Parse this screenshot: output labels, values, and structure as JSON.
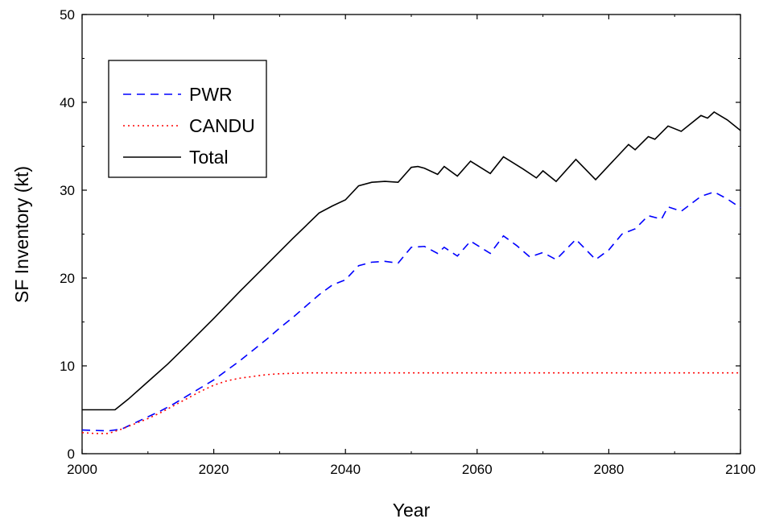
{
  "chart_data": {
    "type": "line",
    "title": "",
    "xlabel": "Year",
    "ylabel": "SF Inventory (kt)",
    "xlim": [
      2000,
      2100
    ],
    "ylim": [
      0,
      50
    ],
    "x_ticks": [
      2000,
      2020,
      2040,
      2060,
      2080,
      2100
    ],
    "y_ticks": [
      0,
      10,
      20,
      30,
      40,
      50
    ],
    "grid": false,
    "legend_position": "upper-left",
    "series": [
      {
        "name": "PWR",
        "color": "#0000ff",
        "style": "dashed",
        "x": [
          2000,
          2004,
          2006,
          2008,
          2010,
          2012,
          2014,
          2016,
          2018,
          2020,
          2022,
          2024,
          2026,
          2028,
          2030,
          2032,
          2034,
          2036,
          2038,
          2040,
          2042,
          2044,
          2046,
          2048,
          2050,
          2052,
          2054,
          2055,
          2057,
          2059,
          2062,
          2064,
          2066,
          2068,
          2070,
          2072,
          2075,
          2078,
          2080,
          2082,
          2084,
          2086,
          2088,
          2089,
          2091,
          2094,
          2096,
          2098,
          2100
        ],
        "values": [
          2.7,
          2.6,
          2.8,
          3.5,
          4.2,
          4.9,
          5.7,
          6.6,
          7.5,
          8.4,
          9.5,
          10.6,
          11.8,
          13.0,
          14.3,
          15.5,
          16.8,
          18.1,
          19.2,
          19.8,
          21.4,
          21.8,
          21.9,
          21.7,
          23.5,
          23.6,
          22.8,
          23.5,
          22.5,
          24.2,
          22.8,
          24.8,
          23.7,
          22.4,
          22.9,
          22.1,
          24.4,
          22.1,
          23.2,
          25.0,
          25.6,
          27.1,
          26.7,
          28.1,
          27.6,
          29.3,
          29.8,
          29.0,
          28.0
        ]
      },
      {
        "name": "CANDU",
        "color": "#ff0000",
        "style": "dotted",
        "x": [
          2000,
          2002,
          2004,
          2006,
          2008,
          2010,
          2012,
          2014,
          2016,
          2018,
          2020,
          2022,
          2024,
          2026,
          2028,
          2030,
          2032,
          2034,
          2036,
          2040,
          2050,
          2060,
          2070,
          2080,
          2090,
          2100
        ],
        "values": [
          2.4,
          2.3,
          2.3,
          2.8,
          3.4,
          4.0,
          4.7,
          5.5,
          6.3,
          7.1,
          7.8,
          8.3,
          8.6,
          8.8,
          9.0,
          9.1,
          9.15,
          9.2,
          9.2,
          9.2,
          9.2,
          9.2,
          9.2,
          9.2,
          9.2,
          9.2
        ]
      },
      {
        "name": "Total",
        "color": "#000000",
        "style": "solid",
        "x": [
          2000,
          2005,
          2007,
          2010,
          2013,
          2016,
          2020,
          2024,
          2028,
          2032,
          2036,
          2038,
          2040,
          2042,
          2044,
          2046,
          2048,
          2050,
          2051,
          2052,
          2054,
          2055,
          2057,
          2059,
          2062,
          2064,
          2067,
          2069,
          2070,
          2072,
          2075,
          2078,
          2080,
          2083,
          2084,
          2086,
          2087,
          2089,
          2091,
          2094,
          2095,
          2096,
          2098,
          2100
        ],
        "values": [
          5.0,
          5.0,
          6.2,
          8.2,
          10.2,
          12.4,
          15.4,
          18.5,
          21.5,
          24.5,
          27.4,
          28.2,
          28.9,
          30.5,
          30.9,
          31.0,
          30.9,
          32.6,
          32.7,
          32.5,
          31.8,
          32.7,
          31.6,
          33.3,
          31.9,
          33.8,
          32.4,
          31.4,
          32.2,
          31.0,
          33.5,
          31.2,
          32.8,
          35.2,
          34.6,
          36.1,
          35.8,
          37.3,
          36.7,
          38.5,
          38.2,
          38.9,
          38.0,
          36.8
        ]
      }
    ]
  }
}
